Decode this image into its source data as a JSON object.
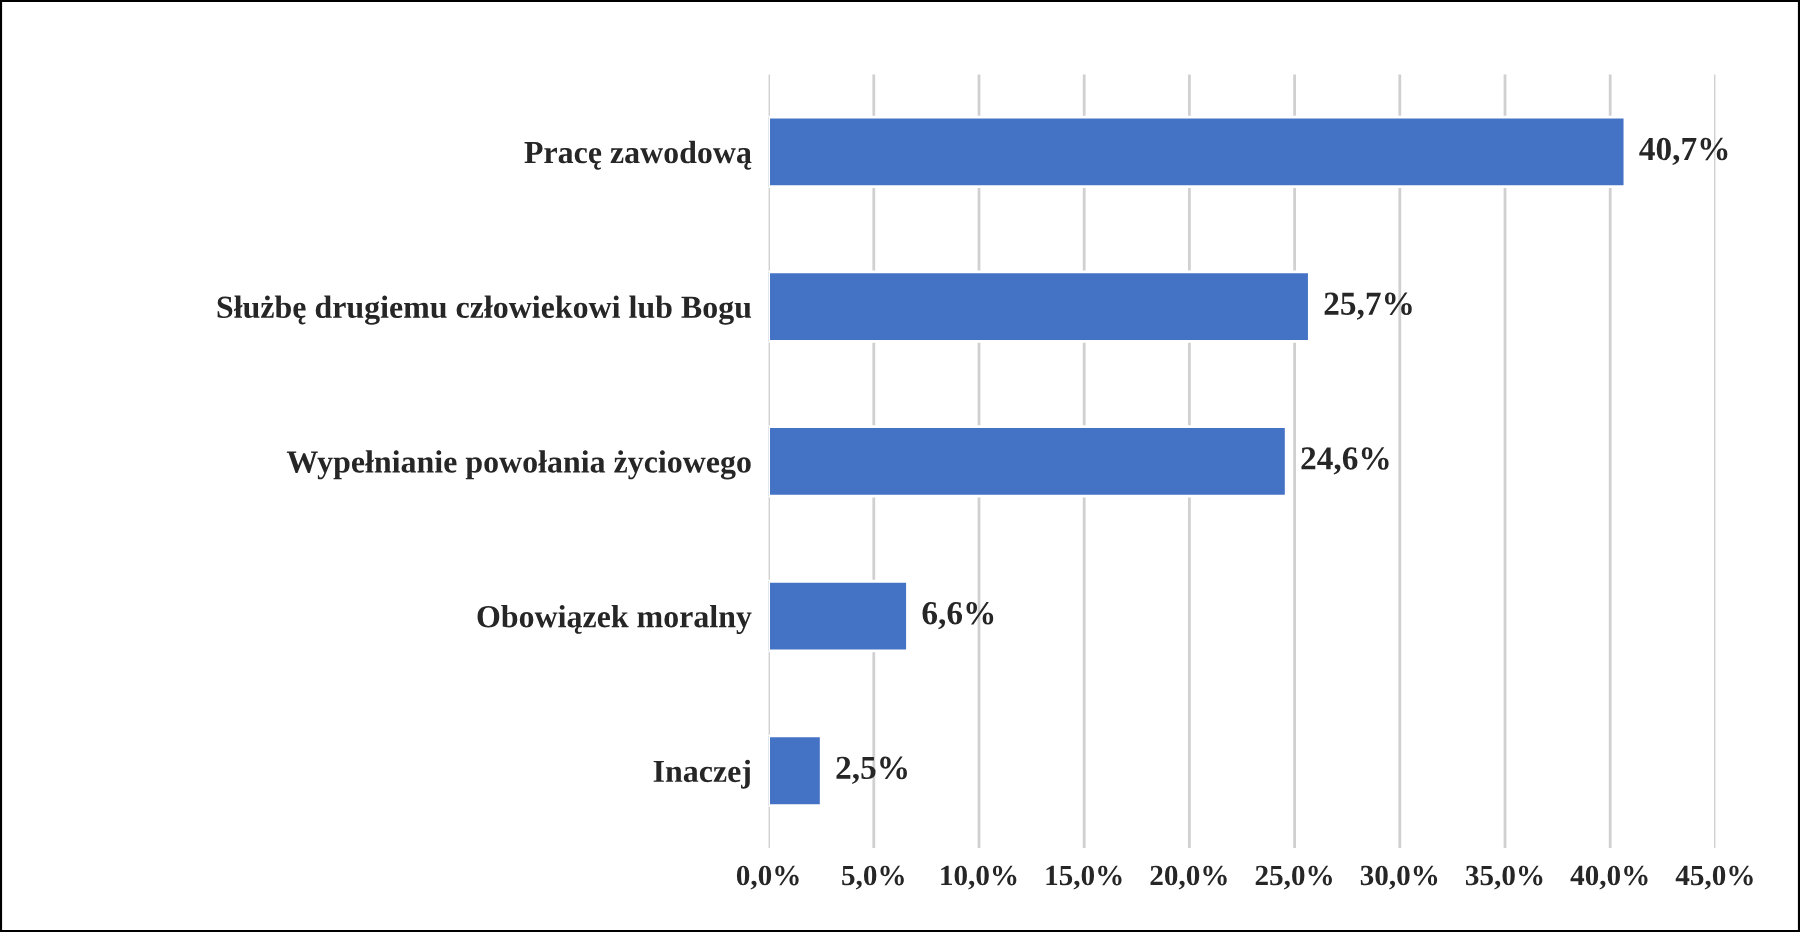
{
  "chart_data": {
    "type": "bar",
    "orientation": "horizontal",
    "categories": [
      "Pracę zawodową",
      "Służbę drugiemu człowiekowi lub Bogu",
      "Wypełnianie powołania życiowego",
      "Obowiązek moralny",
      "Inaczej"
    ],
    "values": [
      40.7,
      25.7,
      24.6,
      6.6,
      2.5
    ],
    "color": "#4472c4",
    "value_labels": [
      "40,7%",
      "25,7%",
      "24,6%",
      "6,6%",
      "2,5%"
    ],
    "xlim": [
      0,
      45
    ],
    "xticks": [
      {
        "value": 0,
        "label": "0,0%"
      },
      {
        "value": 5,
        "label": "5,0%"
      },
      {
        "value": 10,
        "label": "10,0%"
      },
      {
        "value": 15,
        "label": "15,0%"
      },
      {
        "value": 20,
        "label": "20,0%"
      },
      {
        "value": 25,
        "label": "25,0%"
      },
      {
        "value": 30,
        "label": "30,0%"
      },
      {
        "value": 35,
        "label": "35,0%"
      },
      {
        "value": 40,
        "label": "40,0%"
      },
      {
        "value": 45,
        "label": "45,0%"
      }
    ],
    "grid": "x"
  }
}
